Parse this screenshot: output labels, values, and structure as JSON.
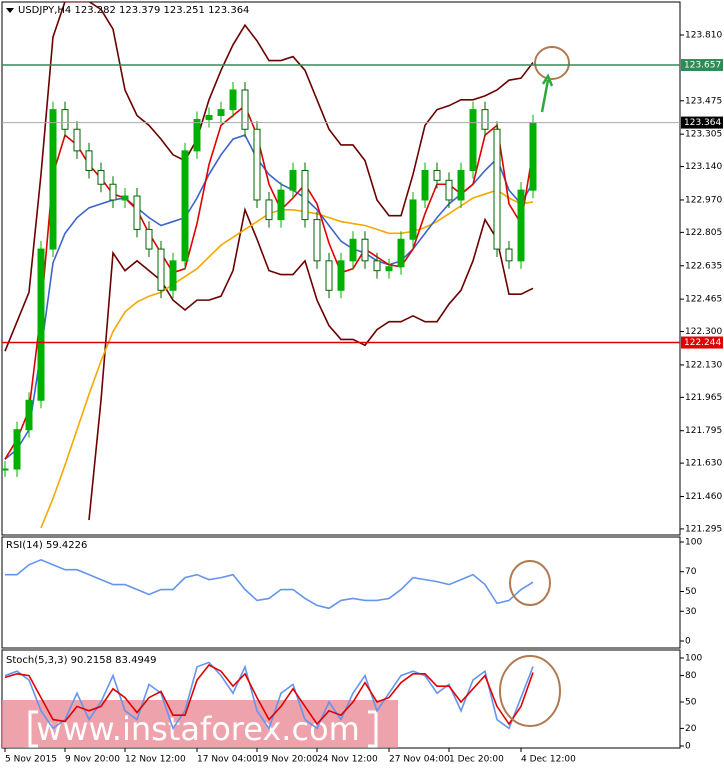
{
  "chart_data": {
    "type": "candlestick",
    "header": "USDJPY,H4 123.282 123.379 123.251 123.364",
    "categories": [
      "5 Nov 2015",
      null,
      null,
      null,
      null,
      "9 Nov 20:00",
      null,
      null,
      null,
      null,
      "12 Nov 12:00",
      null,
      null,
      null,
      null,
      null,
      "17 Nov 04:00",
      null,
      null,
      null,
      null,
      "19 Nov 20:00",
      null,
      null,
      null,
      null,
      "24 Nov 12:00",
      null,
      null,
      null,
      null,
      null,
      "27 Nov 04:00",
      null,
      null,
      null,
      null,
      "1 Dec 20:00",
      null,
      null,
      null,
      null,
      null,
      "4 Dec 12:00",
      null
    ],
    "close": [
      121.6,
      121.8,
      121.95,
      122.72,
      123.43,
      123.33,
      123.22,
      123.12,
      123.05,
      122.97,
      122.99,
      122.82,
      122.72,
      122.51,
      122.66,
      123.22,
      123.38,
      123.4,
      123.43,
      123.53,
      123.33,
      122.97,
      122.87,
      123.02,
      123.12,
      122.87,
      122.66,
      122.51,
      122.66,
      122.77,
      122.66,
      122.61,
      122.63,
      122.77,
      122.97,
      123.12,
      123.07,
      122.97,
      123.12,
      123.43,
      123.33,
      122.72,
      122.66,
      123.02,
      123.364
    ],
    "up_color": "#00b000",
    "down_color": "#006400",
    "ylim": [
      121.264,
      123.978
    ],
    "yticks": [
      {
        "value": 123.81,
        "label": "123.810"
      },
      {
        "value": 123.475,
        "label": "123.475"
      },
      {
        "value": 123.305,
        "label": "123.305"
      },
      {
        "value": 123.14,
        "label": "123.140"
      },
      {
        "value": 122.97,
        "label": "122.970"
      },
      {
        "value": 122.805,
        "label": "122.805"
      },
      {
        "value": 122.635,
        "label": "122.635"
      },
      {
        "value": 122.465,
        "label": "122.465"
      },
      {
        "value": 122.3,
        "label": "122.300"
      },
      {
        "value": 122.13,
        "label": "122.130"
      },
      {
        "value": 121.965,
        "label": "121.965"
      },
      {
        "value": 121.795,
        "label": "121.795"
      },
      {
        "value": 121.63,
        "label": "121.630"
      },
      {
        "value": 121.46,
        "label": "121.460"
      },
      {
        "value": 121.295,
        "label": "121.295"
      }
    ],
    "levels": [
      {
        "value": 123.657,
        "color": "#2e8b57"
      },
      {
        "value": 123.364,
        "color": "#000000"
      },
      {
        "value": 122.244,
        "color": "#e00000"
      }
    ],
    "lines": [
      {
        "color": "#6b0000",
        "values": [
          122.2,
          122.35,
          122.5,
          123.1,
          123.8,
          123.98,
          123.98,
          123.98,
          123.94,
          123.84,
          123.53,
          123.4,
          123.35,
          123.28,
          123.2,
          123.17,
          123.28,
          123.48,
          123.63,
          123.76,
          123.86,
          123.78,
          123.68,
          123.68,
          123.7,
          123.63,
          123.48,
          123.33,
          123.25,
          123.25,
          123.17,
          122.97,
          122.89,
          122.89,
          123.1,
          123.35,
          123.43,
          123.45,
          123.48,
          123.48,
          123.5,
          123.53,
          123.58,
          123.59,
          123.67
        ]
      },
      {
        "color": "#6b0000",
        "values": [
          null,
          null,
          null,
          null,
          null,
          null,
          null,
          121.34,
          121.95,
          122.7,
          122.61,
          122.66,
          122.61,
          122.56,
          122.46,
          122.41,
          122.46,
          122.46,
          122.48,
          122.61,
          122.92,
          122.77,
          122.61,
          122.59,
          122.59,
          122.66,
          122.46,
          122.33,
          122.26,
          122.26,
          122.23,
          122.31,
          122.35,
          122.35,
          122.38,
          122.35,
          122.35,
          122.44,
          122.51,
          122.66,
          122.87,
          122.77,
          122.49,
          122.49,
          122.52
        ]
      },
      {
        "color": "#f5a800",
        "values": [
          null,
          null,
          null,
          121.3,
          121.45,
          121.62,
          121.8,
          121.98,
          122.15,
          122.3,
          122.4,
          122.45,
          122.48,
          122.5,
          122.54,
          122.58,
          122.62,
          122.68,
          122.74,
          122.78,
          122.82,
          122.86,
          122.9,
          122.92,
          122.92,
          122.91,
          122.9,
          122.88,
          122.86,
          122.85,
          122.84,
          122.82,
          122.8,
          122.8,
          122.81,
          122.83,
          122.86,
          122.9,
          122.94,
          122.98,
          123.0,
          123.02,
          122.98,
          122.95,
          122.96
        ]
      },
      {
        "color": "#3c64d0",
        "values": [
          121.65,
          121.7,
          121.8,
          122.2,
          122.65,
          122.8,
          122.88,
          122.93,
          122.95,
          122.97,
          122.98,
          122.93,
          122.88,
          122.84,
          122.86,
          122.88,
          122.98,
          123.1,
          123.2,
          123.28,
          123.3,
          123.18,
          123.1,
          123.05,
          123.02,
          122.98,
          122.92,
          122.84,
          122.76,
          122.72,
          122.7,
          122.66,
          122.64,
          122.66,
          122.72,
          122.8,
          122.88,
          122.95,
          123.0,
          123.05,
          123.12,
          123.18,
          123.02,
          122.95,
          123.06
        ]
      },
      {
        "color": "#e00000",
        "values": [
          121.65,
          121.75,
          121.9,
          122.4,
          123.1,
          123.3,
          123.25,
          123.15,
          123.08,
          123.0,
          122.98,
          122.92,
          122.8,
          122.7,
          122.6,
          122.62,
          122.85,
          123.15,
          123.35,
          123.4,
          123.45,
          123.3,
          123.05,
          122.92,
          122.98,
          123.05,
          122.95,
          122.75,
          122.6,
          122.62,
          122.72,
          122.68,
          122.64,
          122.63,
          122.72,
          122.9,
          123.05,
          123.05,
          123.0,
          123.05,
          123.3,
          123.35,
          122.95,
          122.85,
          123.22
        ]
      }
    ],
    "rsi": {
      "label": "RSI(14) 59.4226",
      "color": "#6495ed",
      "ylim": [
        0,
        100
      ],
      "yticks": [
        100,
        70,
        50,
        30,
        0
      ],
      "values": [
        67,
        67,
        77,
        82,
        77,
        72,
        72,
        67,
        62,
        57,
        57,
        52,
        47,
        52,
        52,
        64,
        67,
        62,
        64,
        67,
        52,
        41,
        43,
        52,
        52,
        43,
        36,
        33,
        41,
        43,
        41,
        41,
        43,
        52,
        64,
        62,
        60,
        57,
        62,
        67,
        57,
        38,
        41,
        52,
        59.4226
      ]
    },
    "stoch": {
      "label": "Stoch(5,3,3) 90.2158 83.4949",
      "ylim": [
        0,
        100
      ],
      "yticks": [
        100,
        80,
        50,
        20,
        0
      ],
      "series": [
        {
          "color": "#6495ed",
          "values": [
            80,
            85,
            75,
            40,
            20,
            30,
            60,
            30,
            50,
            80,
            40,
            30,
            70,
            60,
            20,
            40,
            90,
            95,
            80,
            60,
            90,
            40,
            20,
            60,
            70,
            30,
            20,
            50,
            30,
            60,
            80,
            40,
            60,
            80,
            85,
            80,
            60,
            70,
            40,
            75,
            85,
            30,
            20,
            55,
            90.2158
          ]
        },
        {
          "color": "#e00000",
          "values": [
            78,
            82,
            80,
            55,
            30,
            28,
            45,
            40,
            45,
            65,
            55,
            38,
            55,
            62,
            35,
            35,
            75,
            92,
            85,
            68,
            82,
            55,
            30,
            45,
            65,
            45,
            25,
            40,
            35,
            50,
            72,
            50,
            55,
            72,
            82,
            82,
            68,
            68,
            50,
            65,
            80,
            45,
            25,
            45,
            83.4949
          ]
        }
      ]
    },
    "watermark": "www.instaforex.com"
  }
}
